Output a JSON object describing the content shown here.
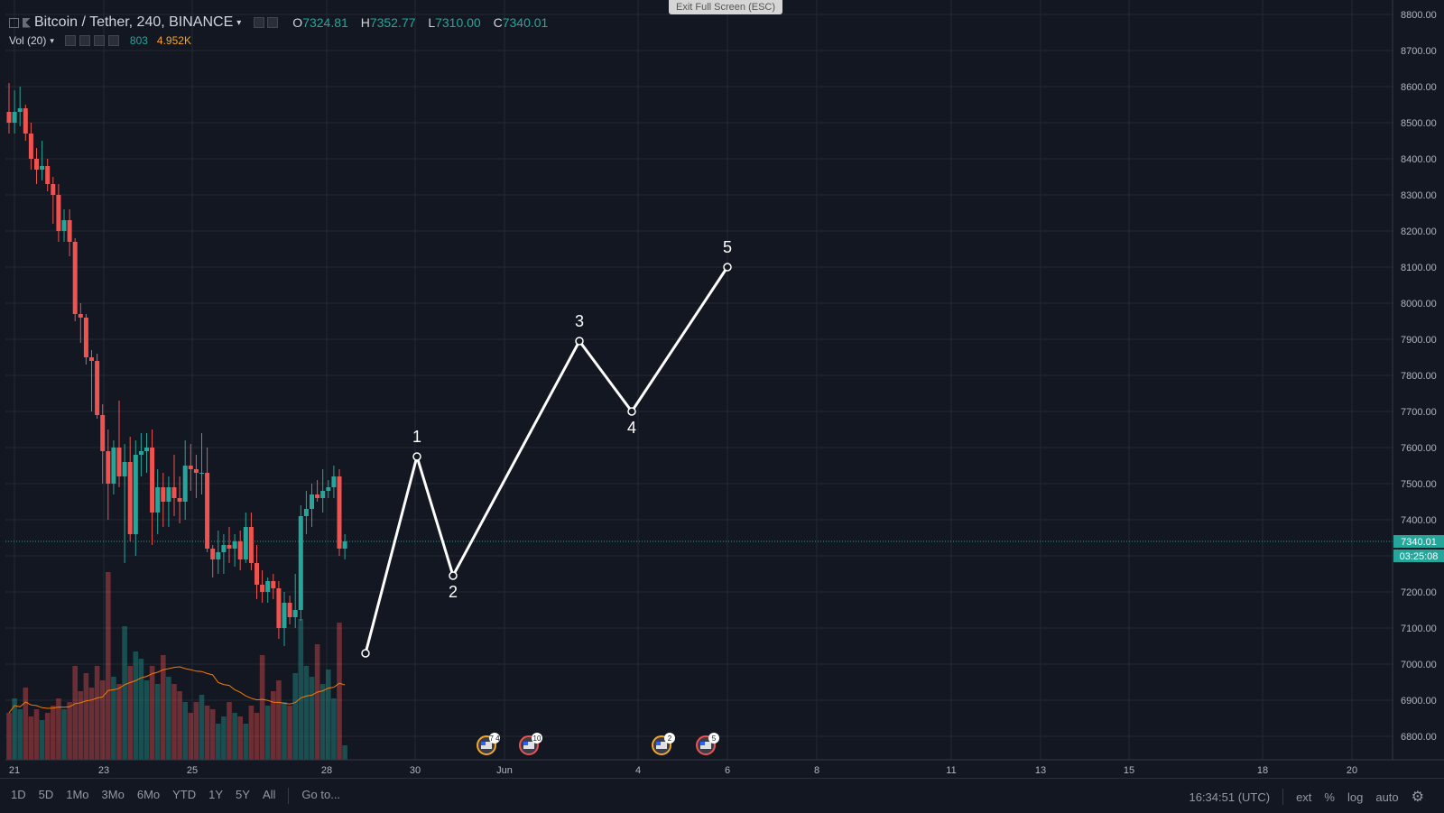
{
  "header": {
    "symbol": "Bitcoin / Tether, 240, BINANCE",
    "open_label": "O",
    "open": "7324.81",
    "high_label": "H",
    "high": "7352.77",
    "low_label": "L",
    "low": "7310.00",
    "close_label": "C",
    "close": "7340.01"
  },
  "volume": {
    "label": "Vol (20)",
    "value1": "803",
    "value2": "4.952K"
  },
  "exit_fullscreen": "Exit Full Screen (ESC)",
  "price_scale": {
    "ticks": [
      "8800.00",
      "8700.00",
      "8600.00",
      "8500.00",
      "8400.00",
      "8300.00",
      "8200.00",
      "8100.00",
      "8000.00",
      "7900.00",
      "7800.00",
      "7700.00",
      "7600.00",
      "7500.00",
      "7400.00",
      "7300.00",
      "7200.00",
      "7100.00",
      "7000.00",
      "6900.00",
      "6800.00"
    ],
    "last_price": "7340.01",
    "countdown": "03:25:08"
  },
  "time_scale": {
    "ticks": [
      "21",
      "23",
      "25",
      "28",
      "30",
      "Jun",
      "4",
      "6",
      "8",
      "11",
      "13",
      "15",
      "18",
      "20"
    ]
  },
  "elliott_wave": {
    "labels": [
      "1",
      "2",
      "3",
      "4",
      "5"
    ]
  },
  "events": [
    "7 4",
    "10",
    "2",
    "5"
  ],
  "bottom_bar": {
    "ranges": [
      "1D",
      "5D",
      "1Mo",
      "3Mo",
      "6Mo",
      "YTD",
      "1Y",
      "5Y",
      "All"
    ],
    "goto": "Go to...",
    "time": "16:34:51 (UTC)",
    "ext": "ext",
    "percent": "%",
    "log": "log",
    "auto": "auto"
  },
  "colors": {
    "bg": "#131722",
    "up": "#26a69a",
    "down": "#ef5350",
    "wave": "#ffffff",
    "ma": "#f57c00"
  },
  "chart_data": {
    "type": "candlestick",
    "title": "Bitcoin / Tether, 240, BINANCE",
    "ylim": [
      6750,
      8830
    ],
    "ohlc": [
      [
        8530,
        8610,
        8470,
        8500
      ],
      [
        8500,
        8590,
        8470,
        8530
      ],
      [
        8530,
        8600,
        8490,
        8540
      ],
      [
        8540,
        8550,
        8450,
        8470
      ],
      [
        8470,
        8500,
        8370,
        8400
      ],
      [
        8400,
        8430,
        8330,
        8370
      ],
      [
        8370,
        8450,
        8340,
        8380
      ],
      [
        8380,
        8400,
        8310,
        8330
      ],
      [
        8330,
        8350,
        8220,
        8300
      ],
      [
        8300,
        8330,
        8170,
        8200
      ],
      [
        8200,
        8260,
        8170,
        8230
      ],
      [
        8230,
        8260,
        8130,
        8170
      ],
      [
        8170,
        8180,
        7950,
        7970
      ],
      [
        7970,
        8000,
        7890,
        7960
      ],
      [
        7960,
        7970,
        7830,
        7850
      ],
      [
        7850,
        7870,
        7700,
        7840
      ],
      [
        7840,
        7860,
        7680,
        7690
      ],
      [
        7690,
        7720,
        7500,
        7590
      ],
      [
        7590,
        7650,
        7400,
        7500
      ],
      [
        7500,
        7620,
        7470,
        7600
      ],
      [
        7600,
        7730,
        7490,
        7520
      ],
      [
        7520,
        7610,
        7280,
        7560
      ],
      [
        7560,
        7630,
        7340,
        7360
      ],
      [
        7360,
        7620,
        7300,
        7580
      ],
      [
        7580,
        7640,
        7520,
        7590
      ],
      [
        7590,
        7640,
        7530,
        7600
      ],
      [
        7600,
        7650,
        7330,
        7420
      ],
      [
        7420,
        7540,
        7360,
        7490
      ],
      [
        7490,
        7530,
        7380,
        7450
      ],
      [
        7450,
        7520,
        7380,
        7490
      ],
      [
        7490,
        7580,
        7410,
        7460
      ],
      [
        7460,
        7520,
        7390,
        7450
      ],
      [
        7450,
        7620,
        7400,
        7550
      ],
      [
        7550,
        7610,
        7480,
        7540
      ],
      [
        7540,
        7580,
        7460,
        7530
      ],
      [
        7530,
        7640,
        7470,
        7530
      ],
      [
        7530,
        7600,
        7310,
        7320
      ],
      [
        7320,
        7330,
        7240,
        7290
      ],
      [
        7290,
        7370,
        7250,
        7310
      ],
      [
        7310,
        7360,
        7250,
        7330
      ],
      [
        7330,
        7380,
        7280,
        7320
      ],
      [
        7320,
        7360,
        7270,
        7340
      ],
      [
        7340,
        7370,
        7260,
        7290
      ],
      [
        7290,
        7420,
        7280,
        7380
      ],
      [
        7380,
        7420,
        7260,
        7280
      ],
      [
        7280,
        7330,
        7180,
        7220
      ],
      [
        7220,
        7260,
        7170,
        7200
      ],
      [
        7200,
        7240,
        7170,
        7230
      ],
      [
        7230,
        7250,
        7180,
        7210
      ],
      [
        7210,
        7230,
        7070,
        7100
      ],
      [
        7100,
        7200,
        7050,
        7170
      ],
      [
        7170,
        7190,
        7110,
        7130
      ],
      [
        7130,
        7250,
        7100,
        7150
      ],
      [
        7150,
        7440,
        7120,
        7410
      ],
      [
        7410,
        7480,
        7360,
        7430
      ],
      [
        7430,
        7500,
        7380,
        7470
      ],
      [
        7470,
        7510,
        7450,
        7460
      ],
      [
        7460,
        7540,
        7420,
        7480
      ],
      [
        7480,
        7510,
        7460,
        7490
      ],
      [
        7490,
        7550,
        7460,
        7520
      ],
      [
        7520,
        7540,
        7300,
        7320
      ],
      [
        7320,
        7360,
        7290,
        7340
      ]
    ],
    "volume": [
      1.3,
      1.7,
      1.4,
      2.0,
      1.2,
      1.4,
      1.1,
      1.3,
      1.5,
      1.7,
      1.4,
      1.6,
      2.6,
      1.9,
      2.4,
      2.0,
      2.6,
      2.2,
      5.2,
      2.3,
      2.1,
      3.7,
      2.6,
      3.0,
      2.8,
      2.2,
      2.6,
      2.1,
      2.9,
      2.3,
      2.1,
      1.9,
      1.6,
      1.3,
      1.6,
      1.8,
      1.5,
      1.4,
      1.0,
      1.2,
      1.6,
      1.3,
      1.2,
      1.0,
      1.5,
      1.3,
      2.9,
      1.5,
      1.9,
      2.2,
      1.6,
      1.5,
      2.4,
      3.9,
      2.6,
      2.3,
      3.2,
      2.1,
      2.5,
      1.7,
      3.8,
      0.4
    ],
    "wave_points_price": [
      7030,
      7575,
      7245,
      7895,
      7700,
      8100
    ]
  }
}
